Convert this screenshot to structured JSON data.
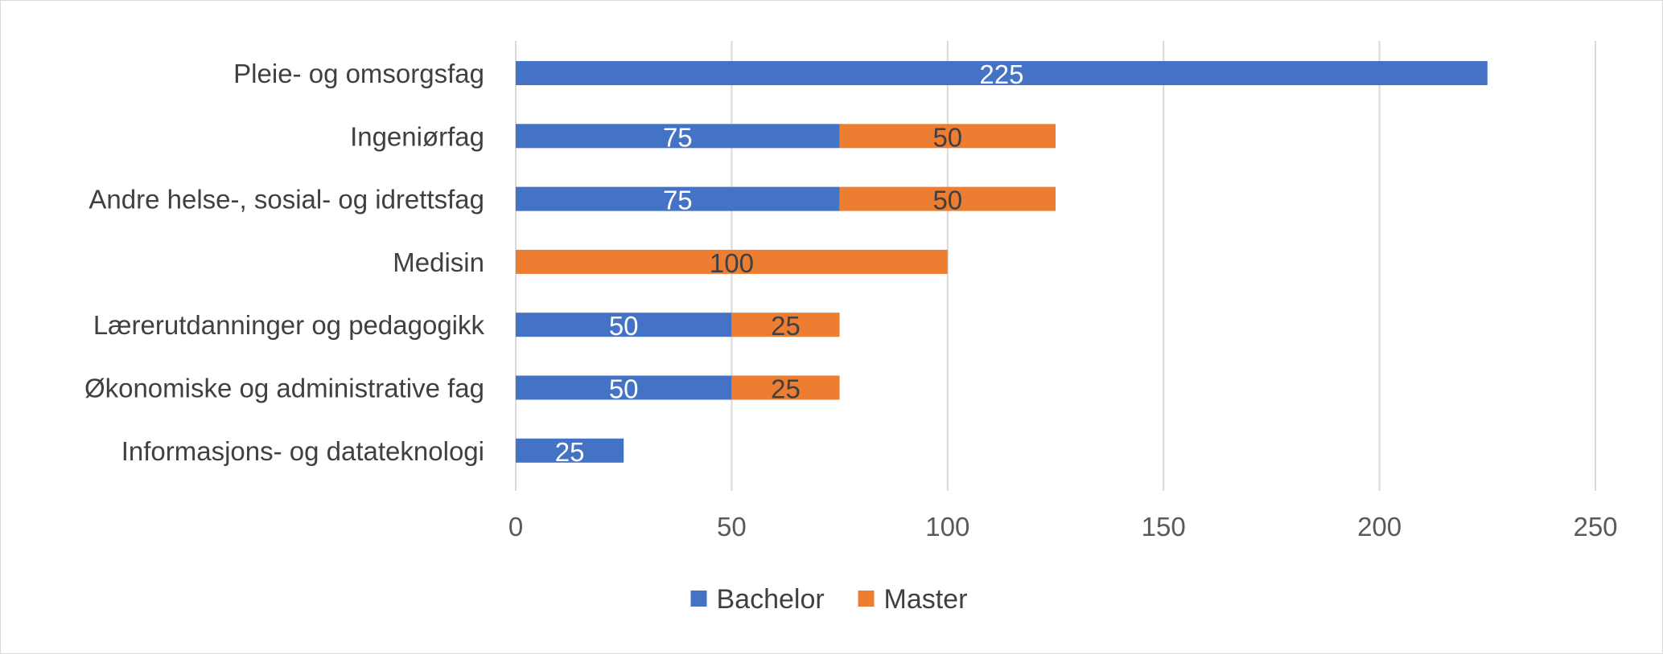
{
  "chart_data": {
    "type": "bar",
    "orientation": "horizontal",
    "stacked": true,
    "categories": [
      "Pleie- og omsorgsfag",
      "Ingeniørfag",
      "Andre helse-, sosial- og idrettsfag",
      "Medisin",
      "Lærerutdanninger og pedagogikk",
      "Økonomiske og administrative fag",
      "Informasjons- og datateknologi"
    ],
    "series": [
      {
        "name": "Bachelor",
        "color": "#4472C4",
        "label_color": "#ffffff",
        "values": [
          225,
          75,
          75,
          0,
          50,
          50,
          25
        ]
      },
      {
        "name": "Master",
        "color": "#ED7D31",
        "label_color": "#404040",
        "values": [
          0,
          50,
          50,
          100,
          25,
          25,
          0
        ]
      }
    ],
    "xlim": [
      0,
      250
    ],
    "xticks": [
      0,
      50,
      100,
      150,
      200,
      250
    ],
    "grid": true,
    "legend_position": "bottom",
    "title": "",
    "xlabel": "",
    "ylabel": ""
  }
}
